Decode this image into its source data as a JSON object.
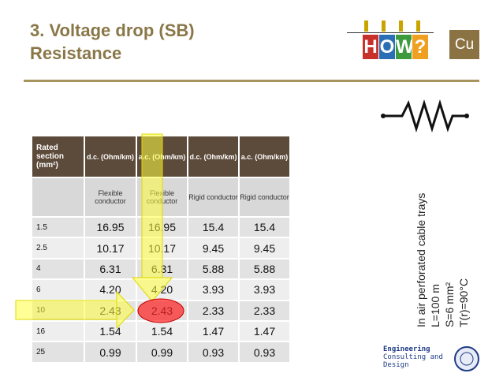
{
  "header": {
    "title_line1": "3. Voltage drop (SB)",
    "title_line2": "Resistance",
    "logo_letters": [
      "H",
      "O",
      "W",
      "?"
    ],
    "badge": "Cu"
  },
  "table": {
    "headers": [
      "Rated section (mm²)",
      "d.c. (Ohm/km)",
      "a.c. (Ohm/km)",
      "d.c. (Ohm/km)",
      "a.c. (Ohm/km)"
    ],
    "subheaders": [
      "Flexible conductor",
      "Flexible conductor",
      "Rigid conductor",
      "Rigid conductor"
    ],
    "rows": [
      [
        "1.5",
        "16.95",
        "16.95",
        "15.4",
        "15.4"
      ],
      [
        "2.5",
        "10.17",
        "10.17",
        "9.45",
        "9.45"
      ],
      [
        "4",
        "6.31",
        "6.31",
        "5.88",
        "5.88"
      ],
      [
        "6",
        "4.20",
        "4.20",
        "3.93",
        "3.93"
      ],
      [
        "10",
        "2.43",
        "2.43",
        "2.33",
        "2.33"
      ],
      [
        "16",
        "1.54",
        "1.54",
        "1.47",
        "1.47"
      ],
      [
        "25",
        "0.99",
        "0.99",
        "0.93",
        "0.93"
      ]
    ]
  },
  "conditions": [
    "In air perforated cable trays",
    "L=100 m",
    "S=6 mm²",
    "T(r)=90°C"
  ],
  "footer_logo": [
    "Engineering",
    "Consulting and",
    "Design"
  ]
}
